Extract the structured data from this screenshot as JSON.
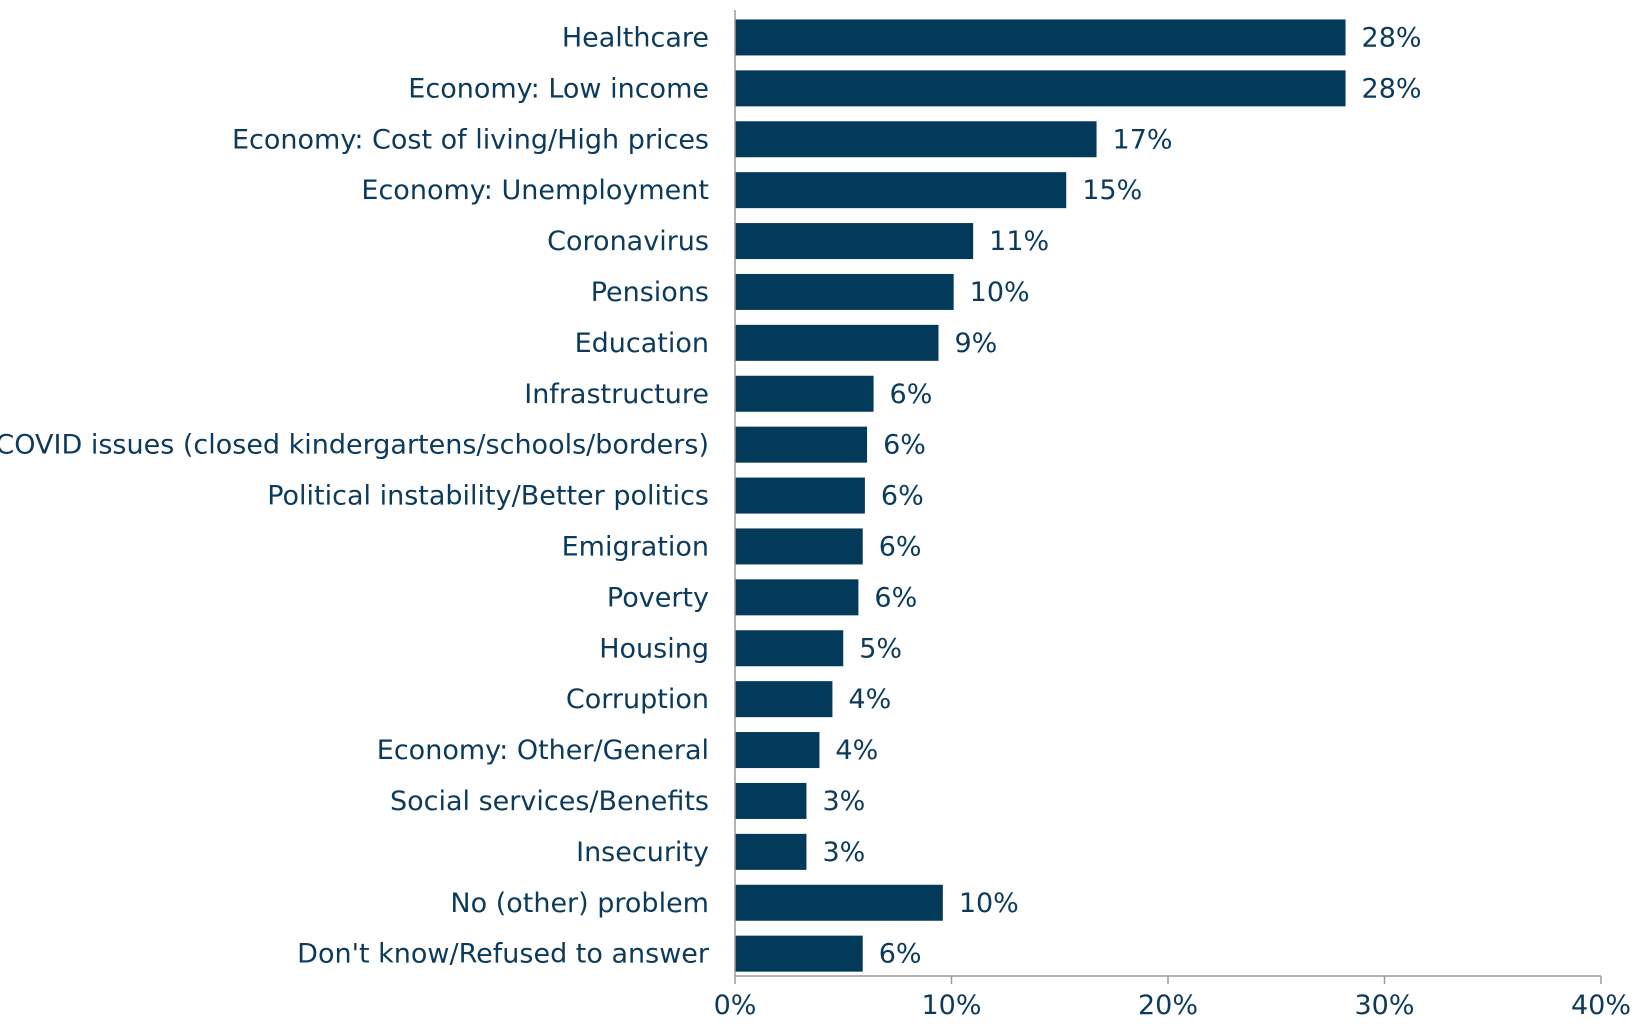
{
  "chart_data": {
    "type": "bar",
    "orientation": "horizontal",
    "categories": [
      "Healthcare",
      "Economy: Low income",
      "Economy: Cost of living/High prices",
      "Economy: Unemployment",
      "Coronavirus",
      "Pensions",
      "Education",
      "Infrastructure",
      "COVID issues (closed kindergartens/schools/borders)",
      "Political instability/Better politics",
      "Emigration",
      "Poverty",
      "Housing",
      "Corruption",
      "Economy: Other/General",
      "Social services/Benefits",
      "Insecurity",
      "No (other) problem",
      "Don't know/Refused to answer"
    ],
    "values": [
      28.2,
      28.2,
      16.7,
      15.3,
      11.0,
      10.1,
      9.4,
      6.4,
      6.1,
      6.0,
      5.9,
      5.7,
      5.0,
      4.5,
      3.9,
      3.3,
      3.3,
      9.6,
      5.9
    ],
    "value_labels": [
      "28%",
      "28%",
      "17%",
      "15%",
      "11%",
      "10%",
      "9%",
      "6%",
      "6%",
      "6%",
      "6%",
      "6%",
      "5%",
      "4%",
      "4%",
      "3%",
      "3%",
      "10%",
      "6%"
    ],
    "xlim": [
      0,
      40
    ],
    "x_ticks": [
      0,
      10,
      20,
      30,
      40
    ],
    "x_tick_labels": [
      "0%",
      "10%",
      "20%",
      "30%",
      "40%"
    ],
    "grid": false,
    "bar_color": "#033a5a",
    "text_color": "#0b3a5c",
    "title": "",
    "xlabel": "",
    "ylabel": ""
  }
}
